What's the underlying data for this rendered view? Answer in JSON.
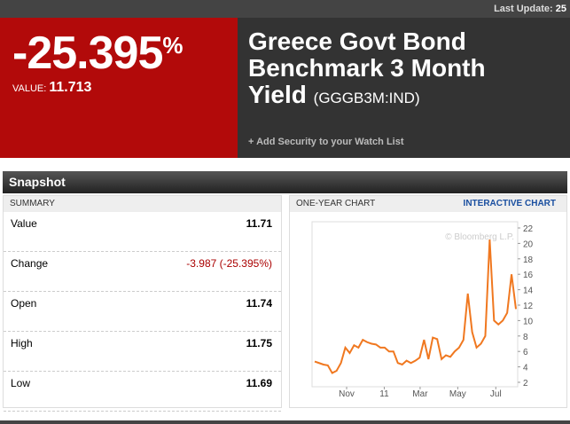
{
  "header": {
    "last_update_label": "Last Update:",
    "last_update": "25",
    "change": "-25.395",
    "change_unit": "%",
    "value_label": "VALUE:",
    "value": "11.713",
    "title": "Greece Govt Bond Benchmark 3 Month Yield",
    "ticker": "(GGGB3M:IND)",
    "watch_link": "+ Add Security to your Watch List"
  },
  "snapshot": {
    "title": "Snapshot",
    "summary": {
      "title": "SUMMARY",
      "rows": [
        [
          "Value",
          "11.71"
        ],
        [
          "Change",
          "-3.987 (-25.395%)"
        ],
        [
          "Open",
          "11.74"
        ],
        [
          "High",
          "11.75"
        ],
        [
          "Low",
          "11.69"
        ]
      ]
    },
    "chart_panel": {
      "title": "ONE-YEAR CHART",
      "link": "INTERACTIVE CHART",
      "chart": {
        "type": "line",
        "copyright": "© Bloomberg L.P.",
        "color": "#f07820",
        "x": [
          0,
          1,
          2,
          3,
          4,
          5,
          6,
          7,
          8,
          9,
          10,
          11,
          12,
          13,
          14,
          15,
          16,
          17,
          18,
          19,
          20,
          21,
          22,
          23,
          24,
          25,
          26,
          27,
          28,
          29,
          30,
          31,
          32,
          33,
          34,
          35,
          36,
          37,
          38,
          39,
          40,
          41,
          42,
          43,
          44,
          45,
          46
        ],
        "values": [
          4.7,
          4.5,
          4.3,
          4.2,
          3.2,
          3.5,
          4.5,
          6.5,
          5.8,
          6.8,
          6.5,
          7.5,
          7.2,
          7.0,
          6.9,
          6.5,
          6.5,
          6.0,
          6.0,
          4.5,
          4.3,
          4.8,
          4.5,
          4.8,
          5.2,
          7.5,
          5.0,
          7.8,
          7.6,
          5.0,
          5.5,
          5.3,
          6.0,
          6.5,
          7.5,
          13.5,
          8.5,
          6.5,
          7.0,
          8.0,
          20.5,
          10.0,
          9.5,
          10.0,
          11.0,
          16.0,
          11.5
        ],
        "xlim": [
          0,
          46
        ],
        "ylim": [
          2,
          22
        ],
        "xticks": [
          {
            "value": 7.3,
            "label": "Nov"
          },
          {
            "value": 15.9,
            "label": "11"
          },
          {
            "value": 24.1,
            "label": "Mar"
          },
          {
            "value": 32.7,
            "label": "May"
          },
          {
            "value": 41.4,
            "label": "Jul"
          }
        ],
        "yticks": [
          2,
          4,
          6,
          8,
          10,
          12,
          14,
          16,
          18,
          20,
          22
        ]
      }
    }
  }
}
